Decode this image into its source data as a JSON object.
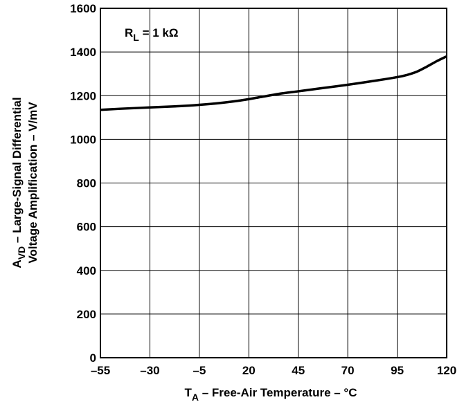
{
  "chart_data": {
    "type": "line",
    "xlabel": {
      "main": "T",
      "sub": "A",
      "rest": " – Free-Air Temperature – °C"
    },
    "ylabel": {
      "line1": {
        "main": "A",
        "sub": "VD",
        "rest": " – Large-Signal Differential"
      },
      "line2": "Voltage Amplification – V/mV"
    },
    "annotation": {
      "main": "R",
      "sub": "L",
      "rest": " = 1 kΩ"
    },
    "xlim": [
      -55,
      120
    ],
    "ylim": [
      0,
      1600
    ],
    "x_ticks": [
      -55,
      -30,
      -5,
      20,
      45,
      70,
      95,
      120
    ],
    "x_tick_labels": [
      "–55",
      "–30",
      "–5",
      "20",
      "45",
      "70",
      "95",
      "120"
    ],
    "y_ticks": [
      0,
      200,
      400,
      600,
      800,
      1000,
      1200,
      1400,
      1600
    ],
    "y_tick_labels": [
      "0",
      "200",
      "400",
      "600",
      "800",
      "1000",
      "1200",
      "1400",
      "1600"
    ],
    "grid": true,
    "series": [
      {
        "x": [
          -55,
          -45,
          -30,
          -15,
          -5,
          5,
          15,
          25,
          35,
          45,
          55,
          70,
          85,
          95,
          100,
          105,
          110,
          115,
          120
        ],
        "y": [
          1135,
          1140,
          1146,
          1152,
          1158,
          1166,
          1177,
          1192,
          1208,
          1220,
          1232,
          1250,
          1270,
          1285,
          1295,
          1310,
          1333,
          1358,
          1380
        ]
      }
    ]
  }
}
